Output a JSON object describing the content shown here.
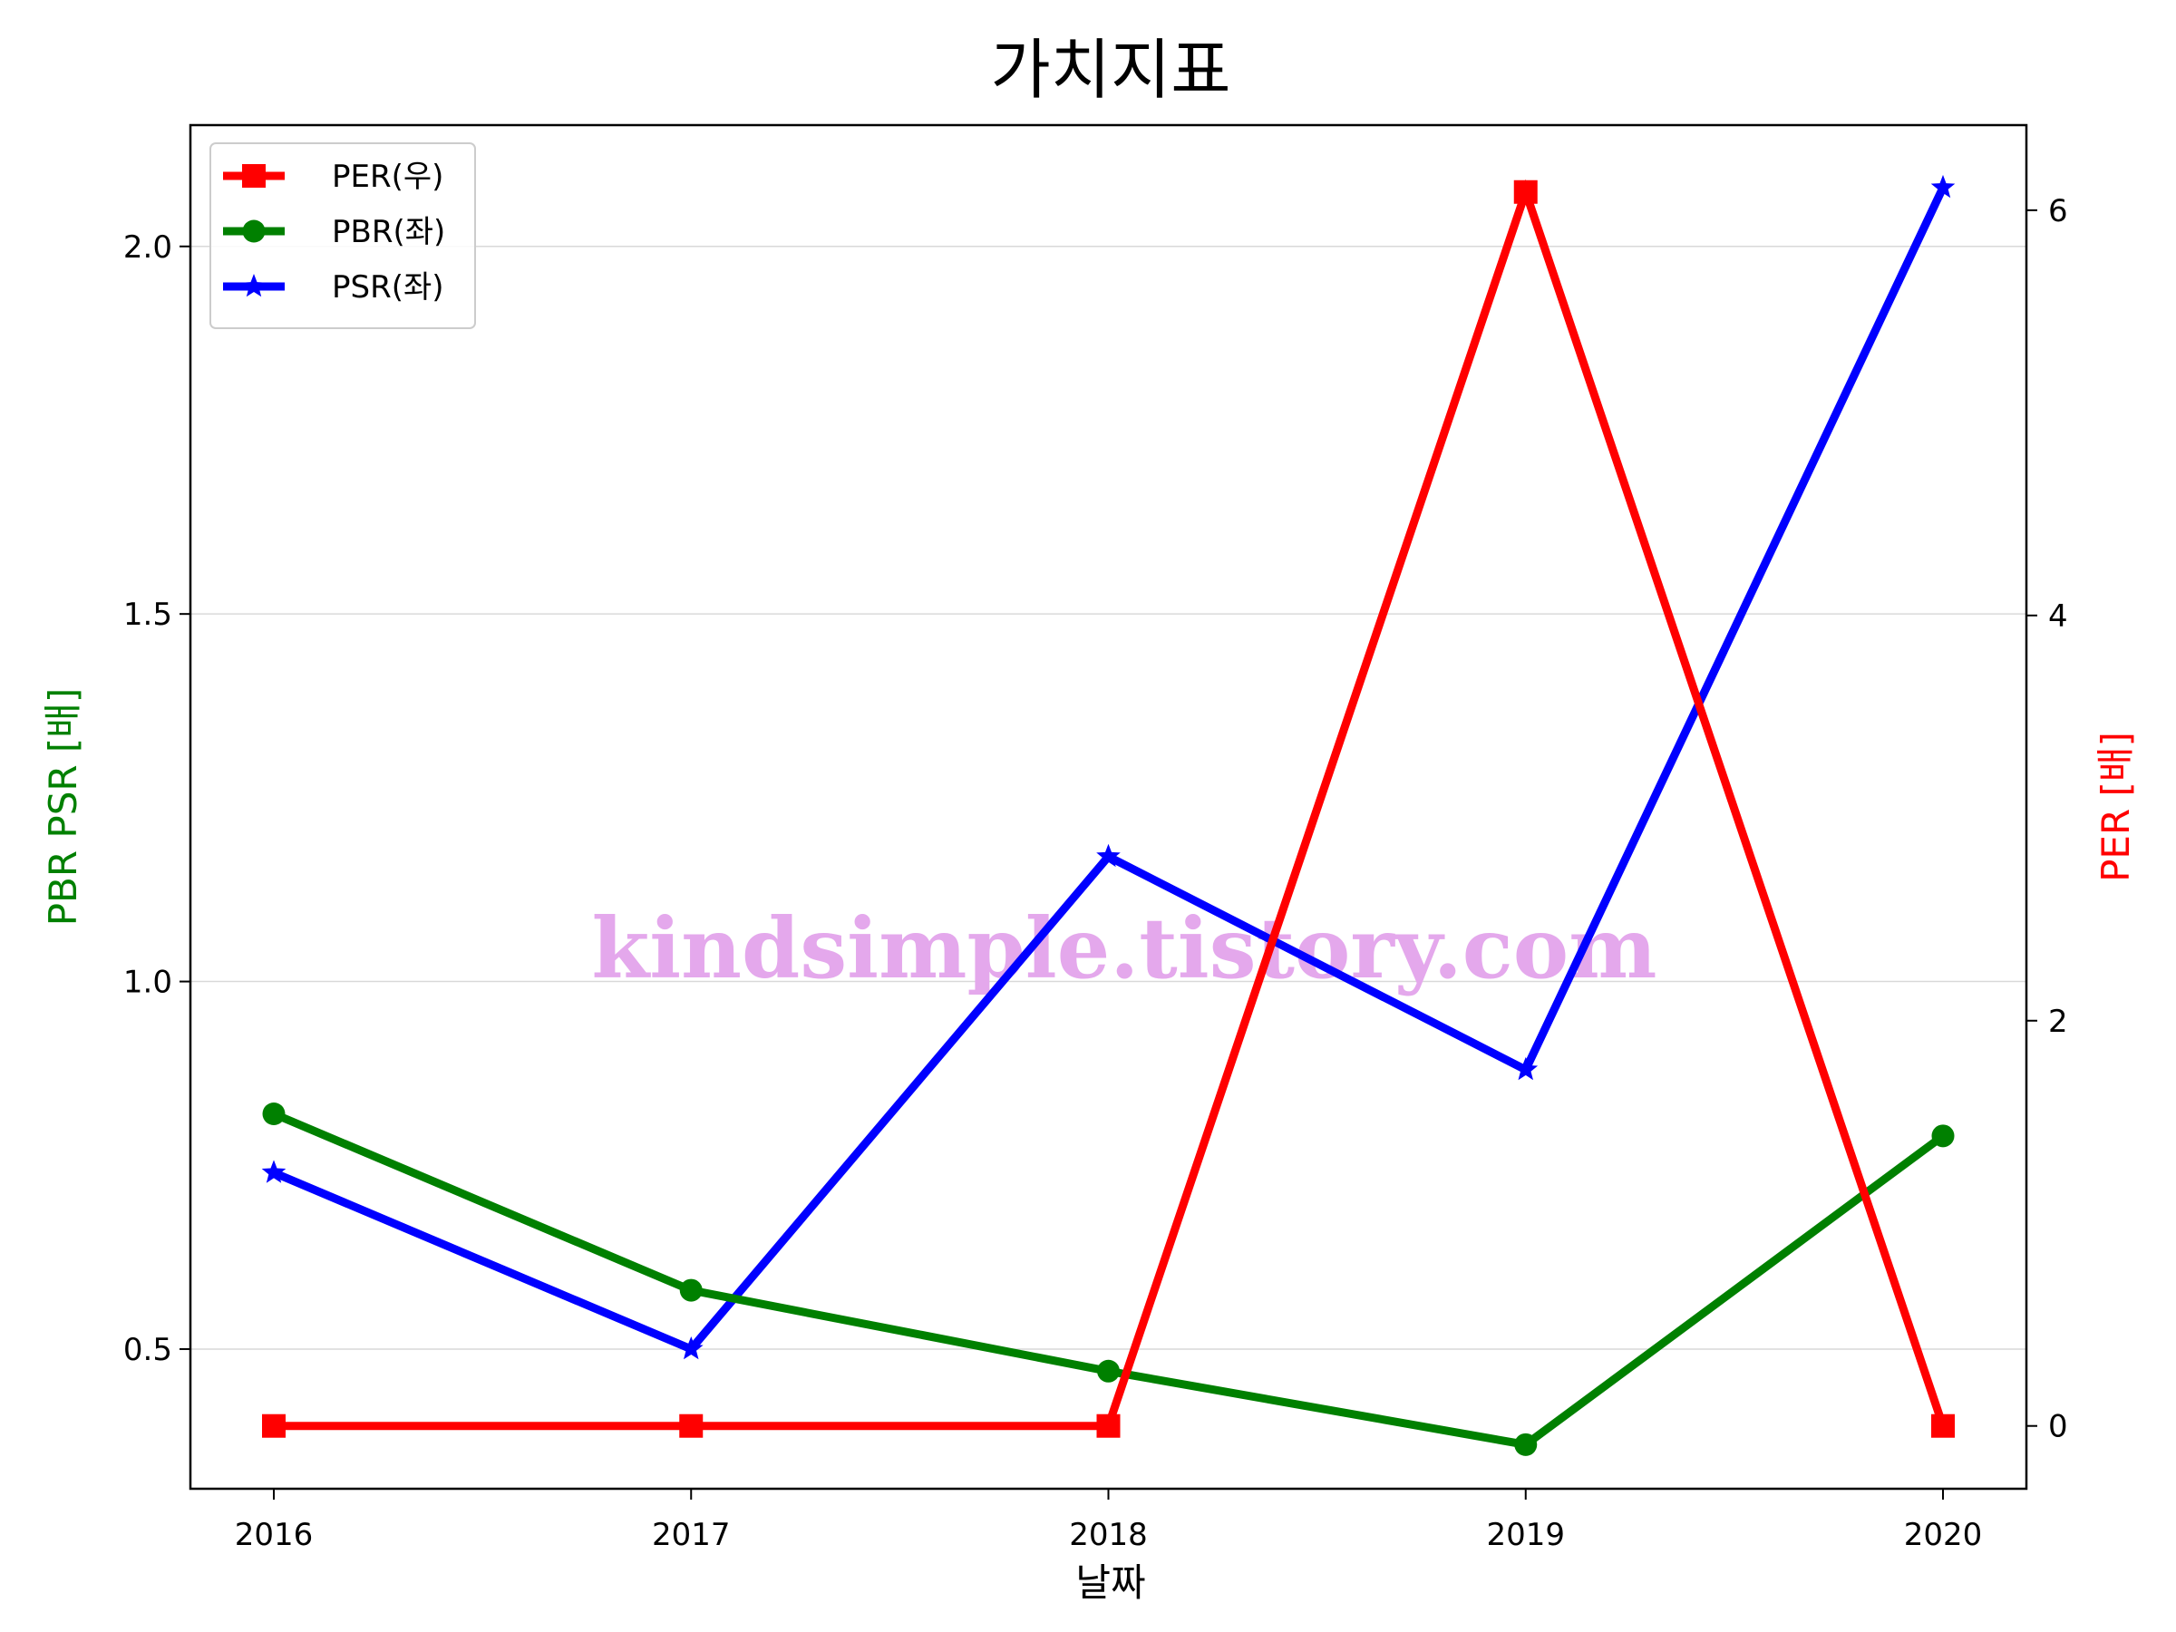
{
  "chart_data": {
    "type": "line",
    "title": "가치지표",
    "xlabel": "날짜",
    "ylabel_left": "PBR PSR [배]",
    "ylabel_right": "PER [배]",
    "x": [
      "2016",
      "2017",
      "2018",
      "2019",
      "2020"
    ],
    "ylim_left": [
      0.31,
      2.165
    ],
    "ylim_right": [
      -0.31,
      6.42
    ],
    "yticks_left": [
      0.5,
      1.0,
      1.5,
      2.0
    ],
    "yticks_right": [
      0,
      2,
      4,
      6
    ],
    "ytick_labels_left": [
      "0.5",
      "1.0",
      "1.5",
      "2.0"
    ],
    "ytick_labels_right": [
      "0",
      "2",
      "4",
      "6"
    ],
    "grid": "horizontal",
    "legend_position": "top-left",
    "series": [
      {
        "name": "PER(우)",
        "axis": "right",
        "color": "#ff0000",
        "marker": "square",
        "values": [
          0.0,
          0.0,
          0.0,
          6.09,
          0.0
        ]
      },
      {
        "name": "PBR(좌)",
        "axis": "left",
        "color": "#008000",
        "marker": "circle",
        "values": [
          0.82,
          0.58,
          0.47,
          0.37,
          0.79
        ]
      },
      {
        "name": "PSR(좌)",
        "axis": "left",
        "color": "#0000ff",
        "marker": "star",
        "values": [
          0.74,
          0.5,
          1.17,
          0.88,
          2.08
        ]
      }
    ],
    "label_colors": {
      "left": "#008000",
      "right": "#ff0000"
    }
  },
  "watermark": {
    "text": "kindsimple.tistory.com",
    "color": "#e4a8ec"
  }
}
